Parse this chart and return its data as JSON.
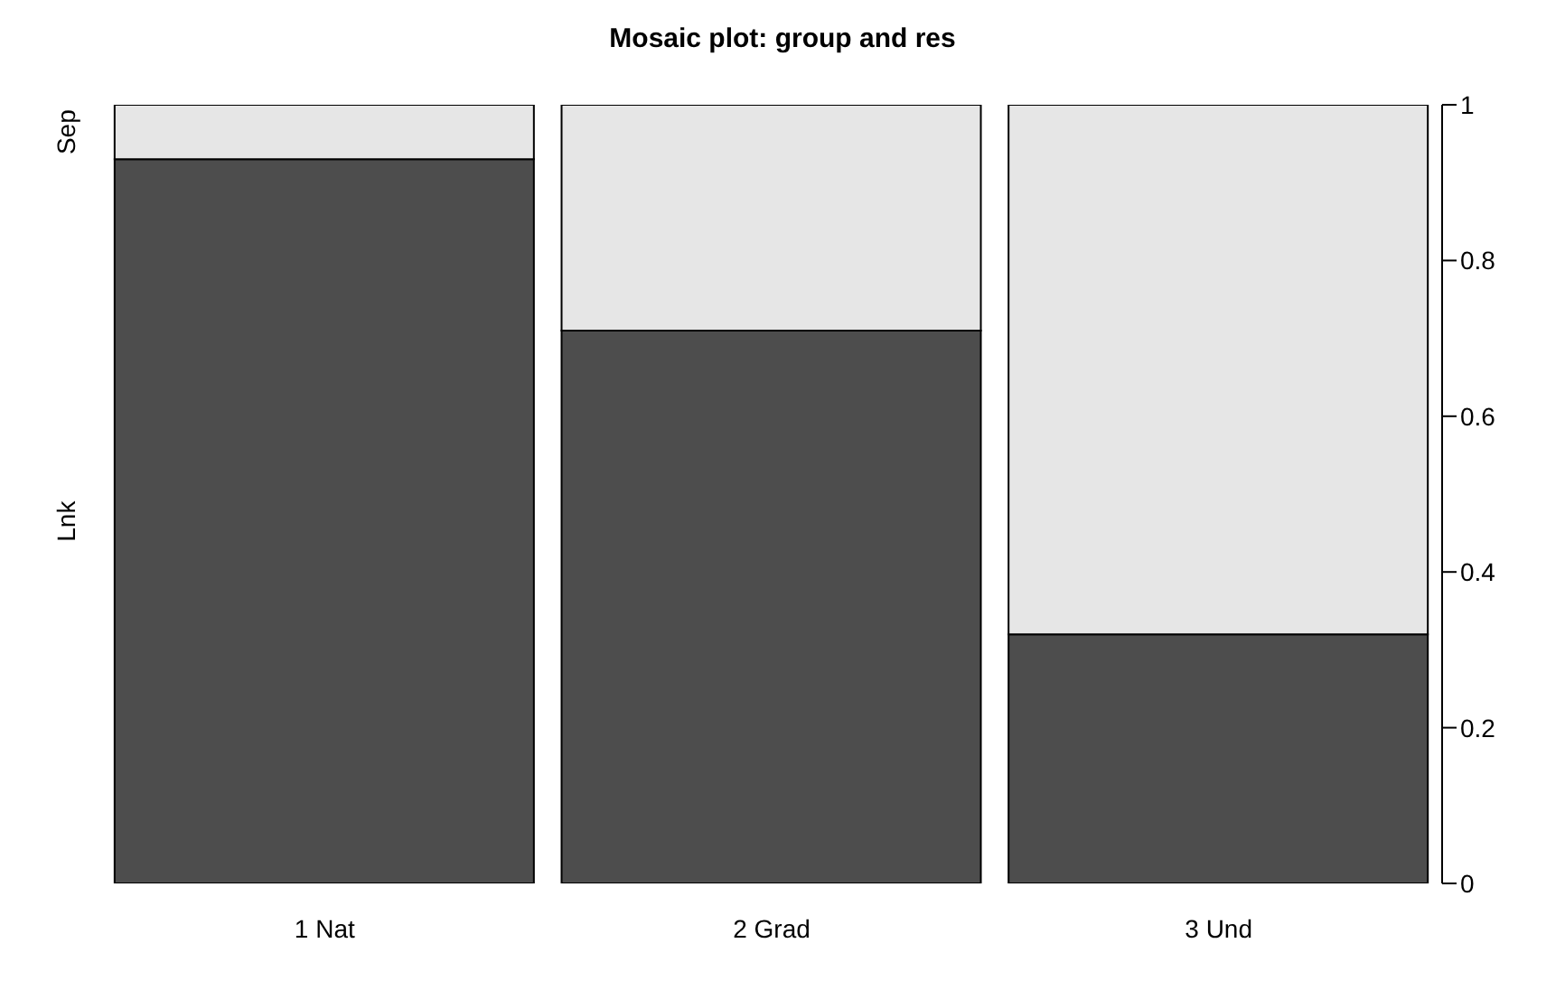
{
  "chart_data": {
    "type": "bar",
    "title": "Mosaic plot: group and res",
    "stacked": true,
    "categories": [
      "1 Nat",
      "2 Grad",
      "3 Und"
    ],
    "series": [
      {
        "name": "Lnk",
        "color": "#4d4d4d",
        "values": [
          0.93,
          0.71,
          0.32
        ]
      },
      {
        "name": "Sep",
        "color": "#e6e6e6",
        "values": [
          0.07,
          0.29,
          0.68
        ]
      }
    ],
    "ylim": [
      0,
      1
    ],
    "yticks": [
      0,
      0.2,
      0.4,
      0.6,
      0.8,
      1
    ],
    "grid": false,
    "legend": false
  }
}
